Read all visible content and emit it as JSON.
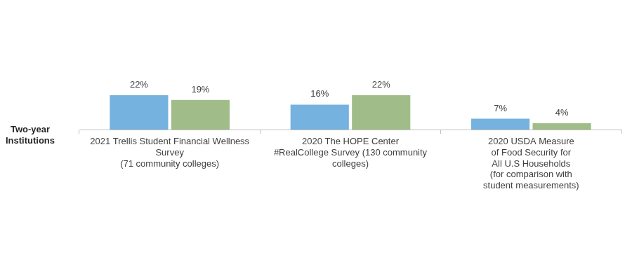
{
  "chart_data": {
    "type": "bar",
    "ylabel": "Two-year Institutions",
    "categories": [
      [
        "2021 Trellis Student Financial Wellness",
        "Survey",
        "(71 community colleges)"
      ],
      [
        "2020 The HOPE Center",
        "#RealCollege Survey (130 community",
        "colleges)"
      ],
      [
        "2020 USDA Measure",
        "of Food Security for",
        "All U.S Households",
        "(for comparison with",
        "student measurements)"
      ]
    ],
    "series": [
      {
        "color": "#75b2df",
        "values": [
          22,
          16,
          7
        ],
        "value_labels": [
          "22%",
          "16%",
          "7%"
        ]
      },
      {
        "color": "#a0bc89",
        "values": [
          19,
          22,
          4
        ],
        "value_labels": [
          "19%",
          "22%",
          "4%"
        ]
      }
    ],
    "ylim": [
      0,
      40
    ],
    "grid": false,
    "data_labels": true,
    "tick_labels": "x"
  }
}
